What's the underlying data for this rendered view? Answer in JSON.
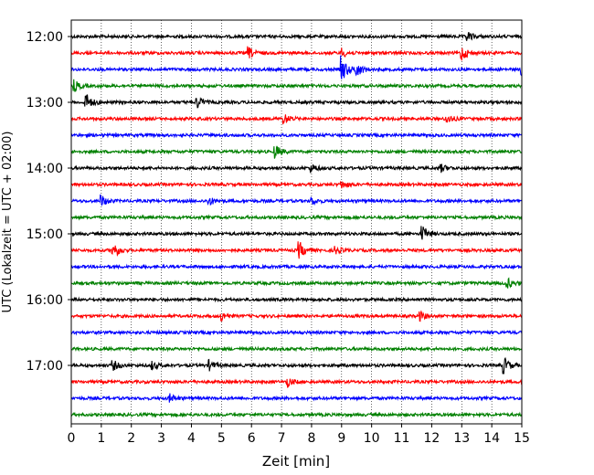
{
  "chart_data": {
    "type": "line",
    "title": "",
    "xlabel": "Zeit  [min]",
    "ylabel": "UTC (Lokalzeit = UTC + 02:00)",
    "xlim": [
      0,
      15
    ],
    "x_ticks": [
      "0",
      "1",
      "2",
      "3",
      "4",
      "5",
      "6",
      "7",
      "8",
      "9",
      "10",
      "11",
      "12",
      "13",
      "14",
      "15"
    ],
    "y_tick_labels": [
      "12:00",
      "13:00",
      "14:00",
      "15:00",
      "16:00",
      "17:00"
    ],
    "grid": "vertical dotted",
    "trace_colors": [
      "#000000",
      "#ff0000",
      "#0000ff",
      "#008000"
    ],
    "traces": [
      {
        "time": "12:00",
        "color": "#000000",
        "events": [
          [
            13.2,
            5
          ]
        ]
      },
      {
        "time": "12:15",
        "color": "#ff0000",
        "events": [
          [
            5.9,
            6
          ],
          [
            9.0,
            5
          ],
          [
            13.0,
            8
          ]
        ]
      },
      {
        "time": "12:30",
        "color": "#0000ff",
        "events": [
          [
            9.0,
            14
          ],
          [
            9.5,
            8
          ],
          [
            15.0,
            6
          ]
        ]
      },
      {
        "time": "12:45",
        "color": "#008000",
        "events": [
          [
            0.1,
            6
          ]
        ]
      },
      {
        "time": "13:00",
        "color": "#000000",
        "events": [
          [
            0.5,
            9
          ],
          [
            4.2,
            6
          ]
        ]
      },
      {
        "time": "13:15",
        "color": "#ff0000",
        "events": [
          [
            7.1,
            5
          ],
          [
            12.5,
            5
          ]
        ]
      },
      {
        "time": "13:30",
        "color": "#0000ff",
        "events": []
      },
      {
        "time": "13:45",
        "color": "#008000",
        "events": [
          [
            6.8,
            7
          ]
        ]
      },
      {
        "time": "14:00",
        "color": "#000000",
        "events": [
          [
            8.0,
            4
          ],
          [
            12.3,
            4
          ]
        ]
      },
      {
        "time": "14:15",
        "color": "#ff0000",
        "events": [
          [
            9.0,
            4
          ]
        ]
      },
      {
        "time": "14:30",
        "color": "#0000ff",
        "events": [
          [
            1.0,
            6
          ],
          [
            4.6,
            4
          ],
          [
            8.0,
            4
          ]
        ]
      },
      {
        "time": "14:45",
        "color": "#008000",
        "events": []
      },
      {
        "time": "15:00",
        "color": "#000000",
        "events": [
          [
            11.7,
            8
          ]
        ]
      },
      {
        "time": "15:15",
        "color": "#ff0000",
        "events": [
          [
            1.4,
            9
          ],
          [
            7.6,
            9
          ],
          [
            8.8,
            4
          ]
        ]
      },
      {
        "time": "15:30",
        "color": "#0000ff",
        "events": []
      },
      {
        "time": "15:45",
        "color": "#008000",
        "events": [
          [
            14.5,
            6
          ]
        ]
      },
      {
        "time": "16:00",
        "color": "#000000",
        "events": []
      },
      {
        "time": "16:15",
        "color": "#ff0000",
        "events": [
          [
            5.0,
            5
          ],
          [
            11.6,
            5
          ]
        ]
      },
      {
        "time": "16:30",
        "color": "#0000ff",
        "events": []
      },
      {
        "time": "16:45",
        "color": "#008000",
        "events": []
      },
      {
        "time": "17:00",
        "color": "#000000",
        "events": [
          [
            1.4,
            5
          ],
          [
            2.7,
            4
          ],
          [
            4.6,
            5
          ],
          [
            14.4,
            9
          ]
        ]
      },
      {
        "time": "17:15",
        "color": "#ff0000",
        "events": [
          [
            7.2,
            5
          ]
        ]
      },
      {
        "time": "17:30",
        "color": "#0000ff",
        "events": [
          [
            3.3,
            4
          ]
        ]
      },
      {
        "time": "17:45",
        "color": "#008000",
        "events": []
      }
    ]
  }
}
